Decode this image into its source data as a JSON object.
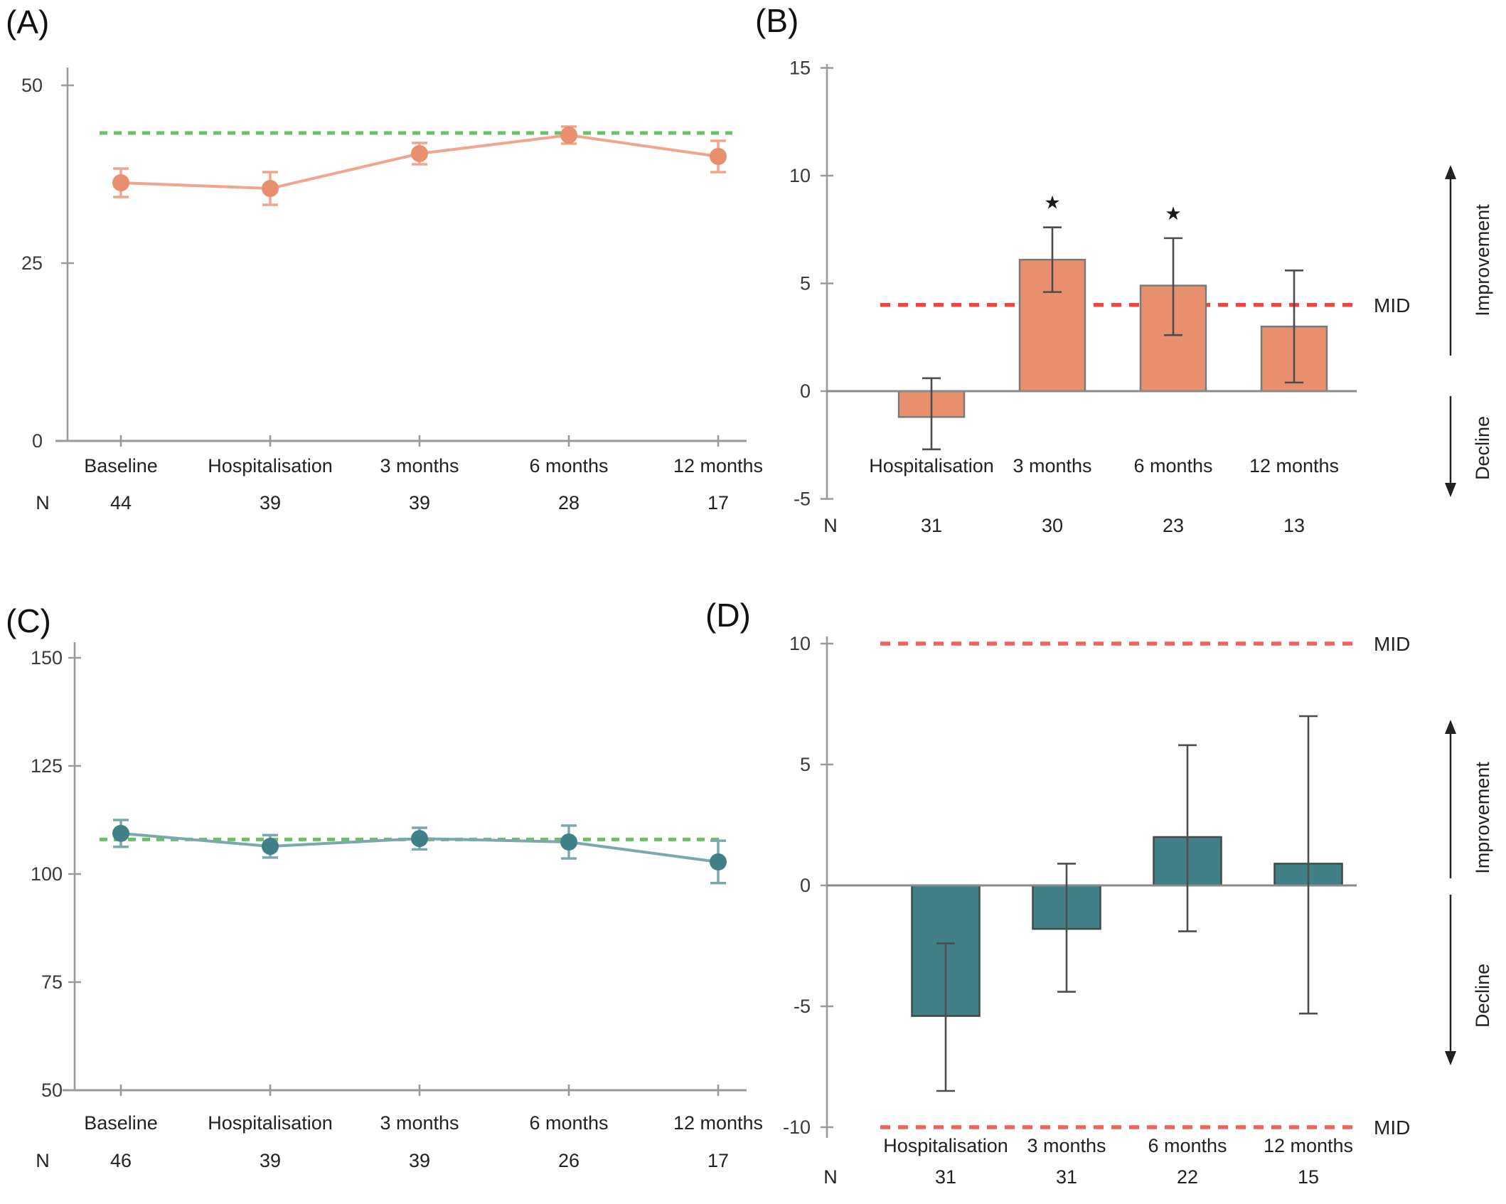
{
  "colors": {
    "salmon": "#E8906E",
    "salmon_line": "#F0A58C",
    "teal": "#418086",
    "teal_line": "#7AA8AC",
    "green_dashed": "#6ABF68",
    "red_dashed_b": "#F2443C",
    "red_dashed_d": "#F2625C",
    "axis": "#9A9A9A",
    "bar_edge_b": "#7A7A7A",
    "bar_edge_d": "#3F4A4A",
    "error_bar": "#4D4D4D",
    "text": "#2E2E2E"
  },
  "chart_data": [
    {
      "panel_label": "(A)",
      "type": "line",
      "series_color_key": "salmon",
      "line_color_key": "salmon_line",
      "categories": [
        "Baseline",
        "Hospitalisation",
        "3 months",
        "6 months",
        "12 months"
      ],
      "n_label": "N",
      "n_values": [
        44,
        39,
        39,
        28,
        17
      ],
      "values": [
        36.3,
        35.5,
        40.4,
        43.0,
        40.0
      ],
      "errors": [
        2.0,
        2.3,
        1.5,
        1.2,
        2.2
      ],
      "ylim": [
        0,
        50
      ],
      "yticks": [
        0,
        25,
        50
      ],
      "reference_line": {
        "value": 43.3,
        "color_key": "green_dashed"
      }
    },
    {
      "panel_label": "(B)",
      "type": "bar",
      "series_color_key": "salmon",
      "bar_edge_key": "bar_edge_b",
      "mid_color_key": "red_dashed_b",
      "categories": [
        "Hospitalisation",
        "3 months",
        "6 months",
        "12 months"
      ],
      "n_label": "N",
      "n_values": [
        31,
        30,
        23,
        13
      ],
      "values": [
        -1.2,
        6.1,
        4.9,
        3.0
      ],
      "err_low": [
        -2.7,
        4.6,
        2.6,
        0.4
      ],
      "err_high": [
        0.6,
        7.6,
        7.1,
        5.6
      ],
      "significance": [
        "",
        "★",
        "★",
        ""
      ],
      "ylim": [
        -5,
        15
      ],
      "yticks": [
        -5,
        0,
        5,
        10,
        15
      ],
      "mid_lines": [
        {
          "value": 4,
          "label": "MID"
        }
      ],
      "annotations": {
        "improvement": "Improvement",
        "decline": "Decline"
      }
    },
    {
      "panel_label": "(C)",
      "type": "line",
      "series_color_key": "teal",
      "line_color_key": "teal_line",
      "categories": [
        "Baseline",
        "Hospitalisation",
        "3 months",
        "6 months",
        "12 months"
      ],
      "n_label": "N",
      "n_values": [
        46,
        39,
        39,
        26,
        17
      ],
      "values": [
        109.4,
        106.4,
        108.2,
        107.4,
        102.8
      ],
      "errors": [
        3.1,
        2.6,
        2.5,
        3.8,
        4.9
      ],
      "ylim": [
        50,
        150
      ],
      "yticks": [
        50,
        75,
        100,
        125,
        150
      ],
      "reference_line": {
        "value": 108,
        "color_key": "green_dashed"
      }
    },
    {
      "panel_label": "(D)",
      "type": "bar",
      "series_color_key": "teal",
      "bar_edge_key": "bar_edge_d",
      "mid_color_key": "red_dashed_d",
      "categories": [
        "Hospitalisation",
        "3 months",
        "6 months",
        "12 months"
      ],
      "n_label": "N",
      "n_values": [
        31,
        31,
        22,
        15
      ],
      "values": [
        -5.4,
        -1.8,
        2.0,
        0.9
      ],
      "err_low": [
        -8.5,
        -4.4,
        -1.9,
        -5.3
      ],
      "err_high": [
        -2.4,
        0.9,
        5.8,
        7.0
      ],
      "significance": [
        "",
        "",
        "",
        ""
      ],
      "ylim": [
        -10,
        10
      ],
      "yticks": [
        -10,
        -5,
        0,
        5,
        10
      ],
      "mid_lines": [
        {
          "value": 10,
          "label": "MID"
        },
        {
          "value": -10,
          "label": "MID"
        }
      ],
      "annotations": {
        "improvement": "Improvement",
        "decline": "Decline"
      }
    }
  ]
}
